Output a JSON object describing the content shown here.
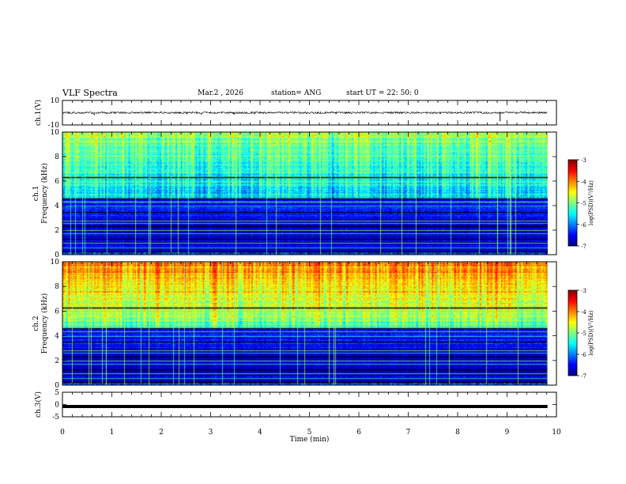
{
  "header": {
    "title": "VLF Spectra",
    "date": "Mar.2 , 2026",
    "station": "station= ANG",
    "start_ut": "start UT = 22: 50: 0"
  },
  "chart_data": [
    {
      "type": "line",
      "panel": "ch1-waveform",
      "ylabel": "ch.1(V)",
      "ylim": [
        -10,
        10
      ],
      "yticks": [
        "10",
        "-10"
      ],
      "level": 0,
      "xlim": [
        0,
        10
      ],
      "data_end": 9.82
    },
    {
      "type": "heatmap",
      "panel": "ch1-spectrogram",
      "ylabel_line1": "ch.1",
      "ylabel_line2": "Frequency (kHz)",
      "ylim": [
        0,
        10
      ],
      "yticks": [
        "0",
        "2",
        "4",
        "6",
        "8",
        "10"
      ],
      "colorbar": {
        "label": "log(PSD)(V²/Hz)",
        "range": [
          -7,
          -3
        ],
        "ticks": [
          "-3",
          "-4",
          "-5",
          "-6",
          "-7"
        ]
      }
    },
    {
      "type": "heatmap",
      "panel": "ch2-spectrogram",
      "ylabel_line1": "ch.2",
      "ylabel_line2": "Frequency (kHz)",
      "ylim": [
        0,
        10
      ],
      "yticks": [
        "0",
        "2",
        "4",
        "6",
        "8",
        "10"
      ],
      "colorbar": {
        "label": "log(PSD)(V²/Hz)",
        "range": [
          -7,
          -3
        ],
        "ticks": [
          "-3",
          "-4",
          "-5",
          "-6",
          "-7"
        ]
      }
    },
    {
      "type": "line",
      "panel": "ch3-waveform",
      "ylabel": "ch.3(V)",
      "ylim": [
        -5,
        5
      ],
      "yticks": [
        "5",
        "0",
        "-5"
      ],
      "level": -0.8,
      "xlim": [
        0,
        10
      ],
      "data_end": 9.82
    }
  ],
  "x_axis": {
    "label": "Time (min)",
    "ticks": [
      "0",
      "1",
      "2",
      "3",
      "4",
      "5",
      "6",
      "7",
      "8",
      "9",
      "10"
    ]
  }
}
